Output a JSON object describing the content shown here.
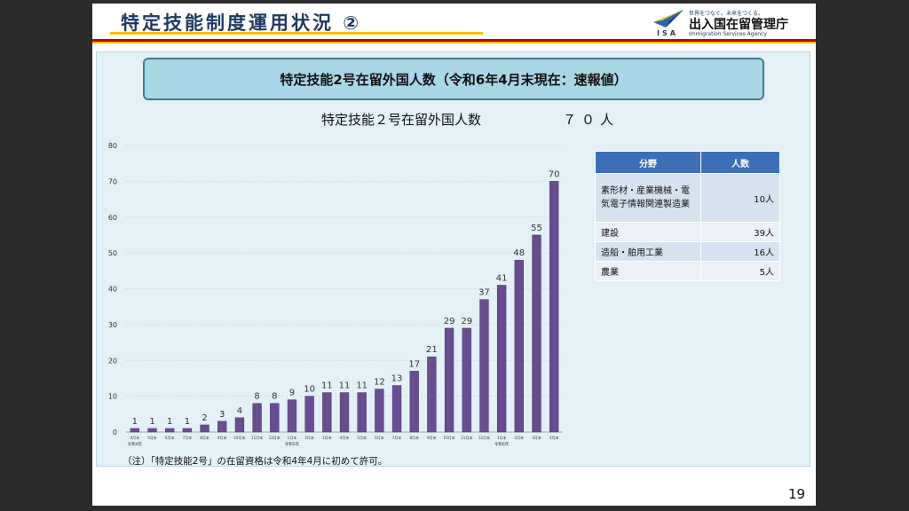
{
  "header": {
    "title": "特定技能制度運用状況 ②",
    "logo_slogan": "世界をつなぐ。未来をつくる。",
    "logo_name": "出入国在留管理庁",
    "logo_en": "Immigration Services Agency",
    "logo_isa": "ISA",
    "colors": {
      "navy": "#1f3a63",
      "red": "#c00000",
      "yellow": "#f2c200"
    }
  },
  "heading": "特定技能2号在留外国人数（令和6年4月末現在：速報値）",
  "subtitle": {
    "label": "特定技能２号在留外国人数",
    "value": "７０人"
  },
  "chart_data": {
    "type": "bar",
    "categories": [
      "4月末",
      "5月末",
      "6月末",
      "7月末",
      "8月末",
      "9月末",
      "10月末",
      "11月末",
      "12月末",
      "1月末",
      "2月末",
      "3月末",
      "4月末",
      "5月末",
      "6月末",
      "7月末",
      "8月末",
      "9月末",
      "10月末",
      "11月末",
      "12月末",
      "1月末",
      "2月末",
      "3月末",
      "4月末"
    ],
    "period_labels": [
      {
        "index": 0,
        "text": "令和4年"
      },
      {
        "index": 9,
        "text": "令和5年"
      },
      {
        "index": 21,
        "text": "令和6年"
      }
    ],
    "values": [
      1,
      1,
      1,
      1,
      2,
      3,
      4,
      8,
      8,
      9,
      10,
      11,
      11,
      11,
      12,
      13,
      17,
      21,
      29,
      29,
      37,
      41,
      48,
      55,
      70
    ],
    "ylim": [
      0,
      80
    ],
    "yticks": [
      0,
      10,
      20,
      30,
      40,
      50,
      60,
      70,
      80
    ],
    "grid": true,
    "bar_color": "#6a4c93"
  },
  "table": {
    "headers": [
      "分野",
      "人数"
    ],
    "rows": [
      {
        "field": "素形材・産業機械・電気電子情報関連製造業",
        "count": "10人"
      },
      {
        "field": "建設",
        "count": "39人"
      },
      {
        "field": "造船・舶用工業",
        "count": "16人"
      },
      {
        "field": "農業",
        "count": "5人"
      }
    ]
  },
  "note": "（注）「特定技能2号」の在留資格は令和4年4月に初めて許可。",
  "page_number": "19"
}
